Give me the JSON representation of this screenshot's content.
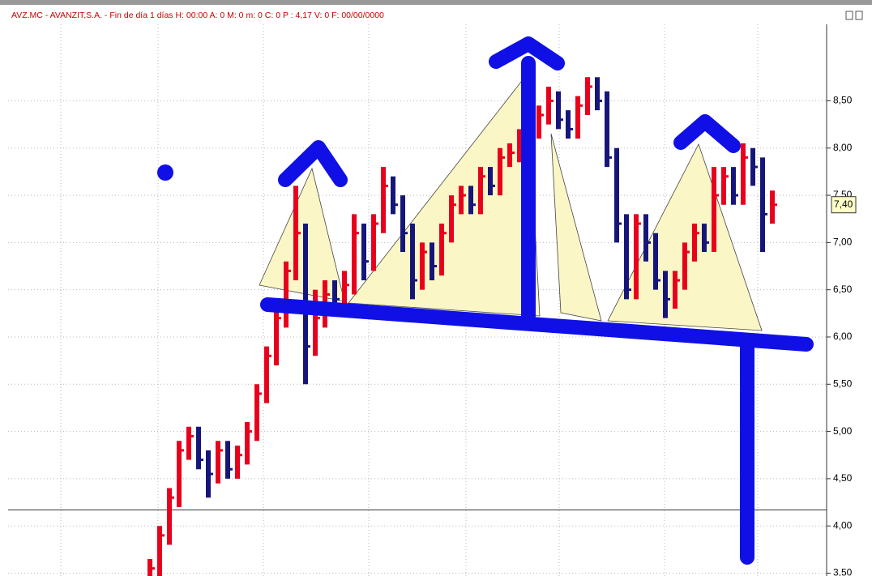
{
  "chart_data": {
    "type": "ohlc",
    "title": "AVZ.MC - AVANZIT,S.A. - Fin de día 1 días H: 00:00 A: 0 M: 0 m: 0 C: 0 P : 4,17 V: 0 F: 00/00/0000",
    "high": [
      3.65,
      4.0,
      4.4,
      4.9,
      5.05,
      5.05,
      4.8,
      4.9,
      4.9,
      4.85,
      5.1,
      5.5,
      5.9,
      6.3,
      6.8,
      7.6,
      7.2,
      6.5,
      6.6,
      6.6,
      6.7,
      7.3,
      7.2,
      7.3,
      7.8,
      7.7,
      7.5,
      7.2,
      7.0,
      7.0,
      7.2,
      7.5,
      7.6,
      7.6,
      7.8,
      7.8,
      8.0,
      8.05,
      8.2,
      8.3,
      8.45,
      8.65,
      8.6,
      8.4,
      8.55,
      8.75,
      8.75,
      8.6,
      8.0,
      7.3,
      7.3,
      7.3,
      7.1,
      6.7,
      6.7,
      7.0,
      7.2,
      7.2,
      7.8,
      7.8,
      7.8,
      8.05,
      8.0,
      7.9,
      7.55
    ],
    "low": [
      3.35,
      3.45,
      3.8,
      4.2,
      4.7,
      4.6,
      4.3,
      4.45,
      4.5,
      4.5,
      4.65,
      4.9,
      5.3,
      5.7,
      6.1,
      6.6,
      5.5,
      5.8,
      6.1,
      6.3,
      6.3,
      6.45,
      6.6,
      6.7,
      7.1,
      7.3,
      6.9,
      6.4,
      6.5,
      6.6,
      6.65,
      7.0,
      7.3,
      7.3,
      7.3,
      7.5,
      7.5,
      7.8,
      7.85,
      8.0,
      8.1,
      8.25,
      8.2,
      8.1,
      8.1,
      8.35,
      8.4,
      7.8,
      7.0,
      6.4,
      6.4,
      6.8,
      6.5,
      6.2,
      6.3,
      6.5,
      6.8,
      6.9,
      6.9,
      7.4,
      7.4,
      7.4,
      7.6,
      6.9,
      7.2
    ],
    "close": [
      3.55,
      3.9,
      4.3,
      4.8,
      4.95,
      4.7,
      4.55,
      4.8,
      4.6,
      4.75,
      5.0,
      5.4,
      5.8,
      6.2,
      6.7,
      7.1,
      5.9,
      6.2,
      6.45,
      6.4,
      6.55,
      7.1,
      6.8,
      7.2,
      7.6,
      7.4,
      7.1,
      6.6,
      6.9,
      6.75,
      7.1,
      7.4,
      7.5,
      7.4,
      7.7,
      7.6,
      7.9,
      7.95,
      8.1,
      8.2,
      8.35,
      8.5,
      8.3,
      8.2,
      8.45,
      8.65,
      8.5,
      7.9,
      7.2,
      6.5,
      7.2,
      7.0,
      6.6,
      6.4,
      6.6,
      6.9,
      7.1,
      7.0,
      7.5,
      7.7,
      7.5,
      7.9,
      7.8,
      7.3,
      7.4
    ],
    "up_color": "#e8001c",
    "down_color": "#16167a",
    "ylim": [
      3.47,
      9.31
    ],
    "yticks": [
      {
        "value": 3.5,
        "label": "3,50"
      },
      {
        "value": 4.0,
        "label": "4,00"
      },
      {
        "value": 4.5,
        "label": "4,50"
      },
      {
        "value": 5.0,
        "label": "5,00"
      },
      {
        "value": 5.5,
        "label": "5,50"
      },
      {
        "value": 6.0,
        "label": "6,00"
      },
      {
        "value": 6.5,
        "label": "6,50"
      },
      {
        "value": 7.0,
        "label": "7,00"
      },
      {
        "value": 7.5,
        "label": "7,50"
      },
      {
        "value": 8.0,
        "label": "8,00"
      },
      {
        "value": 8.5,
        "label": "8,50"
      }
    ],
    "price_line": 4.17,
    "last_price": {
      "value": 7.4,
      "label": "7,40"
    },
    "grid": true
  }
}
